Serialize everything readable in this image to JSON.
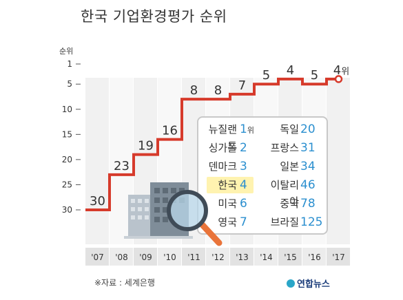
{
  "title": "한국 기업환경평가 순위",
  "y_axis_title": "순위",
  "source": "※자료 : 세계은행",
  "logo_text": "연합뉴스",
  "colors": {
    "line": "#d63a2b",
    "rank_value": "#2b8fcf",
    "highlight": "#fff3b0"
  },
  "chart_data": {
    "type": "line",
    "title": "한국 기업환경평가 순위",
    "ylabel": "순위",
    "xlabel": "",
    "y_inverted": true,
    "ylim": [
      1,
      30
    ],
    "yticks": [
      1,
      5,
      10,
      15,
      20,
      25,
      30
    ],
    "categories": [
      "'07",
      "'08",
      "'09",
      "'10",
      "'11",
      "'12",
      "'13",
      "'14",
      "'15",
      "'16",
      "'17"
    ],
    "series": [
      {
        "values": [
          30,
          23,
          19,
          16,
          8,
          8,
          7,
          5,
          4,
          5,
          4
        ]
      }
    ],
    "last_label_suffix": "위",
    "step_line": true
  },
  "ranking_panel": {
    "unit_suffix": "위",
    "rows": [
      {
        "left_country": "뉴질랜드",
        "left_rank": "1",
        "right_country": "독일",
        "right_rank": "20"
      },
      {
        "left_country": "싱가폴",
        "left_rank": "2",
        "right_country": "프랑스",
        "right_rank": "31"
      },
      {
        "left_country": "덴마크",
        "left_rank": "3",
        "right_country": "일본",
        "right_rank": "34"
      },
      {
        "left_country": "한국",
        "left_rank": "4",
        "right_country": "이탈리아",
        "right_rank": "46",
        "highlight": true
      },
      {
        "left_country": "미국",
        "left_rank": "6",
        "right_country": "중국",
        "right_rank": "78"
      },
      {
        "left_country": "영국",
        "left_rank": "7",
        "right_country": "브라질",
        "right_rank": "125"
      }
    ]
  },
  "illustration": {
    "icons": [
      "buildings-icon",
      "magnifier-icon"
    ]
  }
}
